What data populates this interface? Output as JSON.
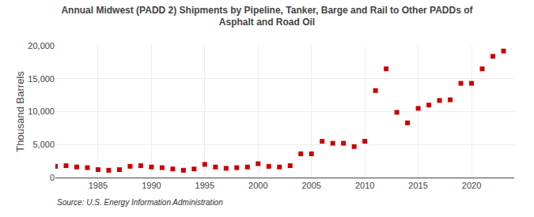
{
  "chart_data": {
    "type": "scatter",
    "title": "Annual Midwest (PADD 2) Shipments by Pipeline, Tanker, Barge and Rail to Other PADDs of\nAsphalt and Road Oil",
    "ylabel": "Thousand Barrels",
    "source": "Source: U.S. Energy Information Administration",
    "x": [
      1981,
      1982,
      1983,
      1984,
      1985,
      1986,
      1987,
      1988,
      1989,
      1990,
      1991,
      1992,
      1993,
      1994,
      1995,
      1996,
      1997,
      1998,
      1999,
      2000,
      2001,
      2002,
      2003,
      2004,
      2005,
      2006,
      2007,
      2008,
      2009,
      2010,
      2011,
      2012,
      2013,
      2014,
      2015,
      2016,
      2017,
      2018,
      2019,
      2020,
      2021,
      2022,
      2023
    ],
    "values": [
      1700,
      1800,
      1600,
      1500,
      1200,
      1100,
      1200,
      1700,
      1800,
      1600,
      1500,
      1300,
      1100,
      1300,
      2000,
      1600,
      1400,
      1500,
      1600,
      2100,
      1700,
      1600,
      1800,
      3600,
      3600,
      5500,
      5200,
      5200,
      4700,
      5500,
      13200,
      16500,
      9900,
      8300,
      10500,
      11000,
      11700,
      11800,
      14300,
      14300,
      16500,
      18400,
      19200
    ],
    "color": "#cc0000",
    "marker": "square",
    "xlim": [
      1981,
      2024
    ],
    "ylim": [
      0,
      20000
    ],
    "xticks": [
      1985,
      1990,
      1995,
      2000,
      2005,
      2010,
      2015,
      2020
    ],
    "yticks": [
      0,
      {
        "value": 5000,
        "label": "5,000"
      },
      {
        "value": 10000,
        "label": "10,000"
      },
      {
        "value": 15000,
        "label": "15,000"
      },
      {
        "value": 20000,
        "label": "20,000"
      }
    ],
    "grid": true
  }
}
